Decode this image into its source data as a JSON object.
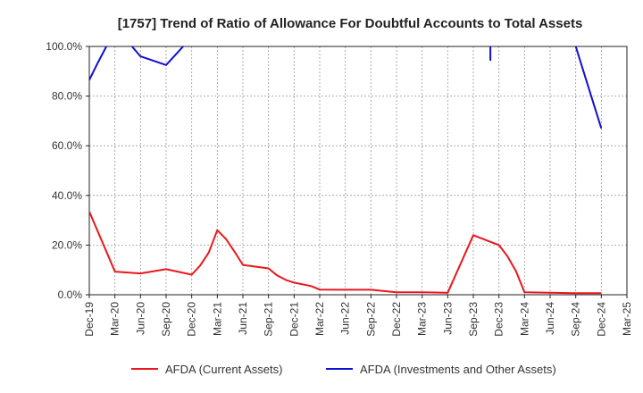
{
  "chart_data": {
    "type": "line",
    "title": "[1757]  Trend of Ratio of Allowance For Doubtful Accounts to Total Assets",
    "xlabel": "",
    "ylabel": "",
    "ylim": [
      0,
      100
    ],
    "y_ticks": [
      "0.0%",
      "20.0%",
      "40.0%",
      "60.0%",
      "80.0%",
      "100.0%"
    ],
    "x_ticks": [
      "Dec-19",
      "Mar-20",
      "Jun-20",
      "Sep-20",
      "Dec-20",
      "Mar-21",
      "Jun-21",
      "Sep-21",
      "Dec-21",
      "Mar-22",
      "Jun-22",
      "Sep-22",
      "Dec-22",
      "Mar-23",
      "Jun-23",
      "Sep-23",
      "Dec-23",
      "Mar-24",
      "Jun-24",
      "Sep-24",
      "Dec-24",
      "Mar-25"
    ],
    "grid": true,
    "legend_position": "bottom",
    "series": [
      {
        "name": "AFDA (Current Assets)",
        "color": "#e8181c",
        "points": [
          [
            "Dec-19",
            33.5
          ],
          [
            "Mar-20",
            9.3
          ],
          [
            "Jun-20",
            8.6
          ],
          [
            "Sep-20",
            10.3
          ],
          [
            "Dec-20",
            8.1
          ],
          [
            "Jan-21",
            11.8
          ],
          [
            "Feb-21",
            17.0
          ],
          [
            "Mar-21",
            26.0
          ],
          [
            "Apr-21",
            22.5
          ],
          [
            "May-21",
            17.5
          ],
          [
            "Jun-21",
            12.0
          ],
          [
            "Sep-21",
            10.6
          ],
          [
            "Oct-21",
            7.8
          ],
          [
            "Nov-21",
            6.0
          ],
          [
            "Dec-21",
            4.9
          ],
          [
            "Feb-22",
            3.5
          ],
          [
            "Mar-22",
            2.1
          ],
          [
            "Jun-22",
            2.0
          ],
          [
            "Sep-22",
            2.0
          ],
          [
            "Dec-22",
            1.0
          ],
          [
            "Mar-23",
            1.0
          ],
          [
            "Jun-23",
            0.8
          ],
          [
            "Sep-23",
            24.0
          ],
          [
            "Dec-23",
            20.0
          ],
          [
            "Jan-24",
            15.5
          ],
          [
            "Feb-24",
            9.5
          ],
          [
            "Mar-24",
            1.0
          ],
          [
            "Jun-24",
            0.8
          ],
          [
            "Sep-24",
            0.6
          ],
          [
            "Dec-24",
            0.6
          ]
        ]
      },
      {
        "name": "AFDA (Investments and Other Assets)",
        "color": "#1010d0",
        "segments": [
          [
            [
              "Dec-19",
              86.5
            ],
            [
              "Jan-20",
              93.5
            ],
            [
              "Feb-20",
              100.0
            ]
          ],
          [
            [
              "May-20",
              100.0
            ],
            [
              "Jun-20",
              96.0
            ],
            [
              "Sep-20",
              92.5
            ],
            [
              "Nov-20",
              100.0
            ]
          ],
          [
            [
              "Nov-23",
              100.0
            ],
            [
              "Nov-23",
              94.5
            ],
            [
              "Nov-23",
              100.0
            ]
          ],
          [
            [
              "Sep-24",
              100.0
            ],
            [
              "Oct-24",
              89.0
            ],
            [
              "Dec-24",
              67.0
            ]
          ]
        ]
      }
    ]
  }
}
